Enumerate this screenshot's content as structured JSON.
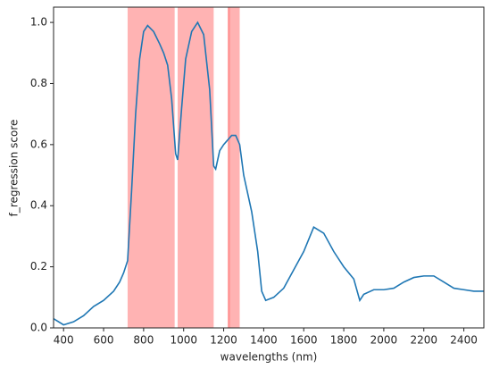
{
  "chart_data": {
    "type": "line",
    "x_label": "wavelengths (nm)",
    "y_label": "f_regression score",
    "x": [
      350,
      400,
      450,
      500,
      550,
      600,
      650,
      680,
      700,
      720,
      740,
      760,
      780,
      800,
      820,
      850,
      880,
      900,
      920,
      940,
      960,
      970,
      990,
      1010,
      1040,
      1070,
      1100,
      1130,
      1150,
      1160,
      1180,
      1200,
      1240,
      1260,
      1280,
      1300,
      1340,
      1370,
      1390,
      1410,
      1450,
      1500,
      1550,
      1600,
      1650,
      1700,
      1750,
      1800,
      1850,
      1880,
      1900,
      1950,
      2000,
      2050,
      2100,
      2150,
      2200,
      2250,
      2300,
      2350,
      2400,
      2450,
      2500
    ],
    "series": [
      {
        "color": "#1f77b4",
        "values": [
          0.03,
          0.01,
          0.02,
          0.04,
          0.07,
          0.09,
          0.12,
          0.15,
          0.18,
          0.22,
          0.45,
          0.7,
          0.88,
          0.97,
          0.99,
          0.97,
          0.93,
          0.9,
          0.86,
          0.75,
          0.57,
          0.55,
          0.72,
          0.88,
          0.97,
          1.0,
          0.96,
          0.78,
          0.53,
          0.52,
          0.58,
          0.6,
          0.63,
          0.63,
          0.6,
          0.5,
          0.38,
          0.25,
          0.12,
          0.09,
          0.1,
          0.13,
          0.19,
          0.25,
          0.33,
          0.31,
          0.25,
          0.2,
          0.16,
          0.09,
          0.11,
          0.125,
          0.125,
          0.13,
          0.15,
          0.165,
          0.17,
          0.17,
          0.15,
          0.13,
          0.125,
          0.12,
          0.12
        ]
      }
    ],
    "highlight_ranges": [
      [
        720,
        955
      ],
      [
        970,
        1150
      ],
      [
        1220,
        1280
      ],
      [
        1222,
        1232
      ]
    ],
    "highlight_color": "#ff8080",
    "xlim": [
      350,
      2500
    ],
    "xticks": [
      400,
      600,
      800,
      1000,
      1200,
      1400,
      1600,
      1800,
      2000,
      2200,
      2400
    ],
    "ylim": [
      0,
      1.05
    ],
    "yticks": [
      {
        "value": 0,
        "label": "0.0"
      },
      {
        "value": 0.2,
        "label": "0.2"
      },
      {
        "value": 0.4,
        "label": "0.4"
      },
      {
        "value": 0.6,
        "label": "0.6"
      },
      {
        "value": 0.8,
        "label": "0.8"
      },
      {
        "value": 1,
        "label": "1.0"
      }
    ],
    "grid": false
  }
}
